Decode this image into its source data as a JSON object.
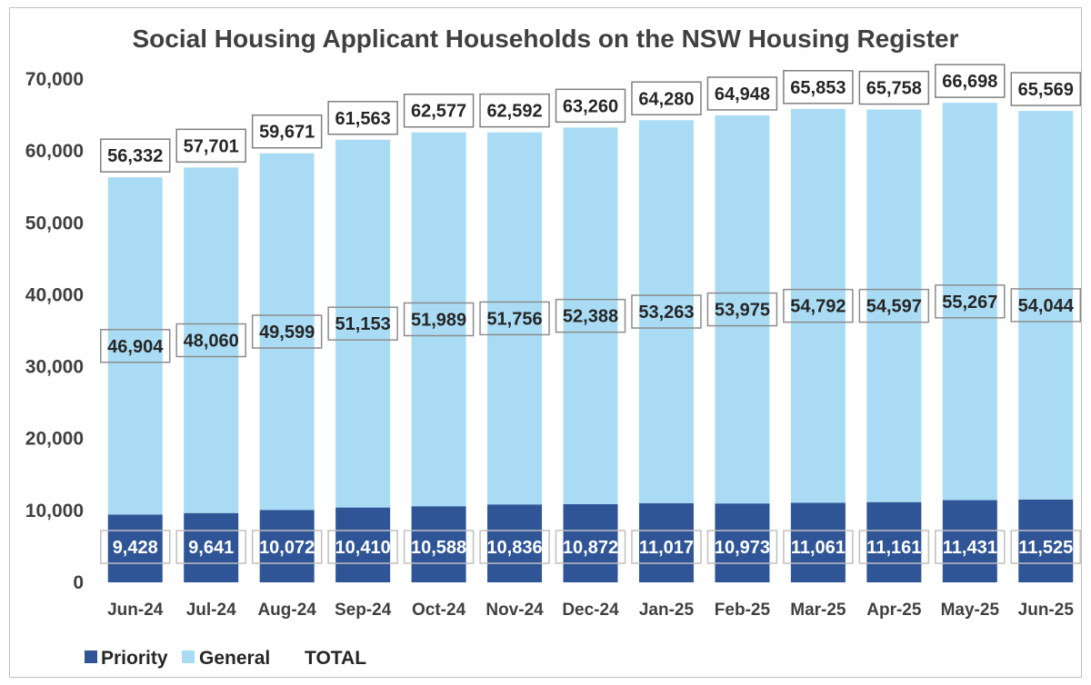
{
  "chart_data": {
    "type": "bar",
    "stacked": true,
    "title": "Social Housing Applicant Households on the NSW Housing Register",
    "categories": [
      "Jun-24",
      "Jul-24",
      "Aug-24",
      "Sep-24",
      "Oct-24",
      "Nov-24",
      "Dec-24",
      "Jan-25",
      "Feb-25",
      "Mar-25",
      "Apr-25",
      "May-25",
      "Jun-25"
    ],
    "series": [
      {
        "name": "Priority",
        "color": "#2f5597",
        "values": [
          9428,
          9641,
          10072,
          10410,
          10588,
          10836,
          10872,
          11017,
          10973,
          11061,
          11161,
          11431,
          11525
        ],
        "labels": [
          "9,428",
          "9,641",
          "10,072",
          "10,410",
          "10,588",
          "10,836",
          "10,872",
          "11,017",
          "10,973",
          "11,061",
          "11,161",
          "11,431",
          "11,525"
        ]
      },
      {
        "name": "General",
        "color": "#a9dcf4",
        "values": [
          46904,
          48060,
          49599,
          51153,
          51989,
          51756,
          52388,
          53263,
          53975,
          54792,
          54597,
          55267,
          54044
        ],
        "labels": [
          "46,904",
          "48,060",
          "49,599",
          "51,153",
          "51,989",
          "51,756",
          "52,388",
          "53,263",
          "53,975",
          "54,792",
          "54,597",
          "55,267",
          "54,044"
        ]
      }
    ],
    "totals": {
      "name": "TOTAL",
      "values": [
        56332,
        57701,
        59671,
        61563,
        62577,
        62592,
        63260,
        64280,
        64948,
        65853,
        65758,
        66698,
        65569
      ],
      "labels": [
        "56,332",
        "57,701",
        "59,671",
        "61,563",
        "62,577",
        "62,592",
        "63,260",
        "64,280",
        "64,948",
        "65,853",
        "65,758",
        "66,698",
        "65,569"
      ]
    },
    "ylim": [
      0,
      70000
    ],
    "yticks": [
      0,
      10000,
      20000,
      30000,
      40000,
      50000,
      60000,
      70000
    ],
    "ytick_labels": [
      "0",
      "10,000",
      "20,000",
      "30,000",
      "40,000",
      "50,000",
      "60,000",
      "70,000"
    ],
    "xlabel": "",
    "ylabel": "",
    "grid": false,
    "legend_position": "bottom-left"
  }
}
